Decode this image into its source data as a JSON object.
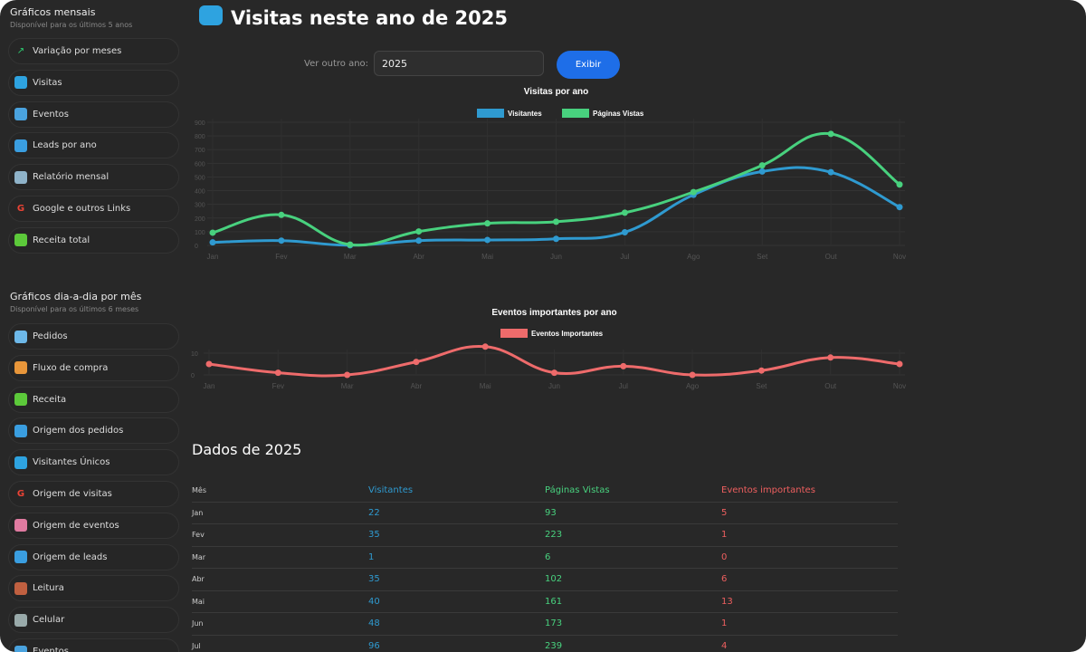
{
  "sidebar": {
    "monthly": {
      "title": "Gráficos mensais",
      "subtitle": "Disponível para os últimos 5 anos",
      "items": [
        {
          "label": "Variação por meses",
          "icon": "trend-icon"
        },
        {
          "label": "Visitas",
          "icon": "visits-icon"
        },
        {
          "label": "Eventos",
          "icon": "events-icon"
        },
        {
          "label": "Leads por ano",
          "icon": "leads-icon"
        },
        {
          "label": "Relatório mensal",
          "icon": "report-icon"
        },
        {
          "label": "Google e outros Links",
          "icon": "google-icon"
        },
        {
          "label": "Receita total",
          "icon": "revenue-icon"
        }
      ]
    },
    "daily": {
      "title": "Gráficos dia-a-dia por mês",
      "subtitle": "Disponível para os últimos 6 meses",
      "items": [
        {
          "label": "Pedidos",
          "icon": "orders-icon"
        },
        {
          "label": "Fluxo de compra",
          "icon": "basket-icon"
        },
        {
          "label": "Receita",
          "icon": "revenue-icon"
        },
        {
          "label": "Origem dos pedidos",
          "icon": "orders-origin-icon"
        },
        {
          "label": "Visitantes Únicos",
          "icon": "visits-icon"
        },
        {
          "label": "Origem de visitas",
          "icon": "google-icon"
        },
        {
          "label": "Origem de eventos",
          "icon": "events-origin-icon"
        },
        {
          "label": "Origem de leads",
          "icon": "leads-icon"
        },
        {
          "label": "Leitura",
          "icon": "reading-icon"
        },
        {
          "label": "Celular",
          "icon": "phone-icon"
        },
        {
          "label": "Eventos",
          "icon": "events-icon"
        }
      ]
    }
  },
  "header": {
    "title": "Visitas neste ano de 2025",
    "year_label": "Ver outro ano:",
    "year_value": "2025",
    "button": "Exibir"
  },
  "chart_data": [
    {
      "type": "line",
      "title": "Visitas por ano",
      "categories": [
        "Jan",
        "Fev",
        "Mar",
        "Abr",
        "Mai",
        "Jun",
        "Jul",
        "Ago",
        "Set",
        "Out",
        "Nov"
      ],
      "yticks": [
        "0",
        "100",
        "200",
        "300",
        "400",
        "500",
        "600",
        "700",
        "800",
        "900"
      ],
      "ylim": [
        0,
        900
      ],
      "series": [
        {
          "name": "Visitantes",
          "color": "#2f9ad0",
          "values": [
            22,
            35,
            1,
            35,
            40,
            48,
            96,
            370,
            540,
            535,
            280
          ]
        },
        {
          "name": "Páginas Vistas",
          "color": "#48d17e",
          "values": [
            93,
            223,
            6,
            102,
            161,
            173,
            239,
            390,
            585,
            815,
            445
          ]
        }
      ]
    },
    {
      "type": "line",
      "title": "Eventos importantes por ano",
      "categories": [
        "Jan",
        "Fev",
        "Mar",
        "Abr",
        "Mai",
        "Jun",
        "Jul",
        "Ago",
        "Set",
        "Out",
        "Nov"
      ],
      "yticks": [
        "0",
        "10"
      ],
      "ylim": [
        0,
        10
      ],
      "series": [
        {
          "name": "Eventos Importantes",
          "color": "#ee6b6b",
          "values": [
            5,
            1,
            0,
            6,
            13,
            1,
            4,
            0,
            2,
            8,
            5
          ]
        }
      ]
    }
  ],
  "table": {
    "title": "Dados de 2025",
    "headers": [
      "Mês",
      "Visitantes",
      "Páginas Vistas",
      "Eventos importantes"
    ],
    "rows": [
      [
        "Jan",
        "22",
        "93",
        "5"
      ],
      [
        "Fev",
        "35",
        "223",
        "1"
      ],
      [
        "Mar",
        "1",
        "6",
        "0"
      ],
      [
        "Abr",
        "35",
        "102",
        "6"
      ],
      [
        "Mai",
        "40",
        "161",
        "13"
      ],
      [
        "Jun",
        "48",
        "173",
        "1"
      ],
      [
        "Jul",
        "96",
        "239",
        "4"
      ]
    ]
  }
}
